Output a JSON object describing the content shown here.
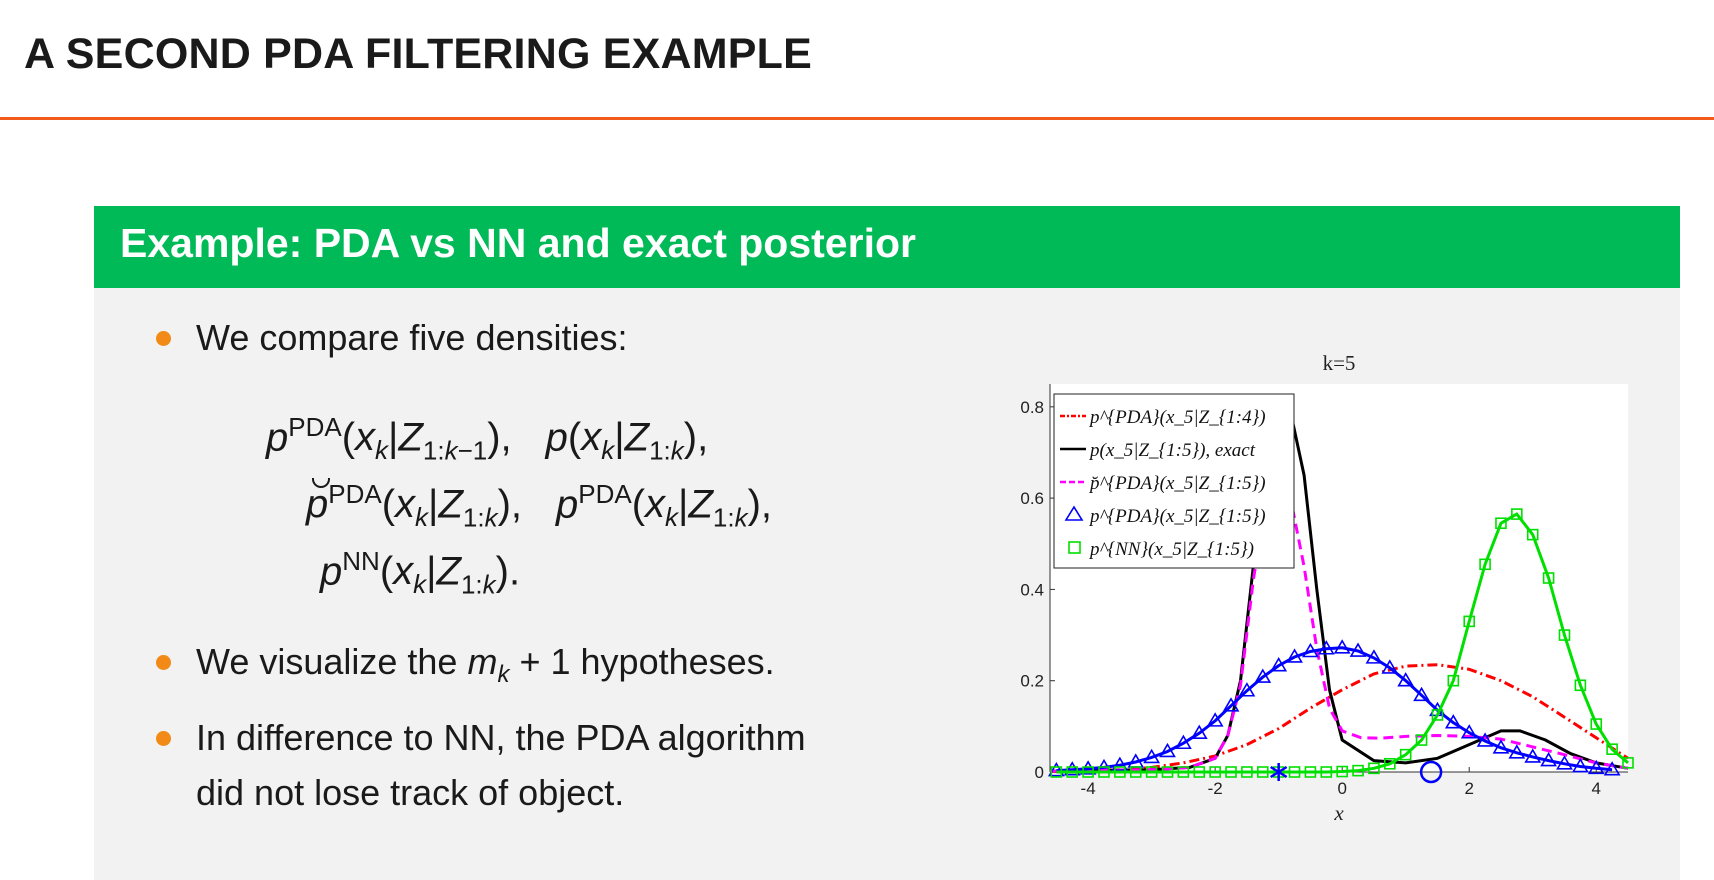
{
  "slide": {
    "title": "A SECOND PDA FILTERING EXAMPLE",
    "block_title": "Example: PDA vs NN and exact posterior"
  },
  "bullets": [
    "We compare five densities:",
    "We visualize the m_k + 1 hypotheses.",
    "In difference to NN, the PDA algorithm",
    "did not lose track of object."
  ],
  "colors": {
    "title_rule": "#f25a1c",
    "block_header": "#00ba57",
    "block_body": "#f2f2f2",
    "bullet": "#f28a18"
  },
  "chart_data": {
    "type": "line",
    "title": "k=5",
    "xlabel": "x",
    "ylabel": "",
    "xlim": [
      -4.6,
      4.5
    ],
    "ylim": [
      0,
      0.85
    ],
    "xticks": [
      -4,
      -2,
      0,
      2,
      4
    ],
    "yticks": [
      0,
      0.2,
      0.4,
      0.6,
      0.8
    ],
    "ytick_labels": [
      "0",
      "0.2",
      "0.4",
      "0.6",
      "0.8"
    ],
    "legend_position": "top-left",
    "grid": false,
    "series": [
      {
        "name": "p^{PDA}(x_5|Z_{1:4})",
        "color": "#ff0000",
        "style": "dash-dot",
        "marker": "none",
        "x": [
          -4.6,
          -4,
          -3.5,
          -3,
          -2.5,
          -2,
          -1.5,
          -1,
          -0.5,
          0,
          0.5,
          1,
          1.5,
          2,
          2.5,
          3,
          3.5,
          4,
          4.5
        ],
        "y": [
          0.001,
          0.002,
          0.005,
          0.01,
          0.02,
          0.035,
          0.06,
          0.095,
          0.14,
          0.18,
          0.215,
          0.232,
          0.235,
          0.225,
          0.2,
          0.165,
          0.12,
          0.075,
          0.03
        ]
      },
      {
        "name": "p(x_5|Z_{1:5}), exact",
        "color": "#000000",
        "style": "solid",
        "marker": "none",
        "x": [
          -4.6,
          -3,
          -2.4,
          -2,
          -1.8,
          -1.6,
          -1.4,
          -1.2,
          -1.0,
          -0.8,
          -0.6,
          -0.4,
          -0.2,
          0,
          0.5,
          1,
          1.5,
          2,
          2.5,
          2.8,
          3.2,
          3.6,
          4,
          4.5
        ],
        "y": [
          0.002,
          0.005,
          0.01,
          0.03,
          0.08,
          0.2,
          0.45,
          0.7,
          0.79,
          0.78,
          0.65,
          0.4,
          0.18,
          0.07,
          0.025,
          0.02,
          0.03,
          0.06,
          0.09,
          0.09,
          0.07,
          0.04,
          0.02,
          0.008
        ]
      },
      {
        "name": "p̆^{PDA}(x_5|Z_{1:5})",
        "color": "#ff00ff",
        "style": "dashed",
        "marker": "none",
        "x": [
          -4.6,
          -3,
          -2.4,
          -2,
          -1.8,
          -1.6,
          -1.4,
          -1.2,
          -1.0,
          -0.8,
          -0.6,
          -0.4,
          -0.2,
          0,
          0.3,
          0.6,
          1,
          1.5,
          2,
          2.5,
          3,
          3.5,
          4,
          4.5
        ],
        "y": [
          0.002,
          0.005,
          0.01,
          0.03,
          0.08,
          0.19,
          0.42,
          0.6,
          0.63,
          0.59,
          0.45,
          0.27,
          0.14,
          0.09,
          0.075,
          0.074,
          0.078,
          0.08,
          0.078,
          0.072,
          0.055,
          0.038,
          0.02,
          0.008
        ]
      },
      {
        "name": "p^{PDA}(x_5|Z_{1:5})",
        "color": "#0000ff",
        "style": "solid",
        "marker": "triangle",
        "x": [
          -4.5,
          -4.25,
          -4,
          -3.75,
          -3.5,
          -3.25,
          -3,
          -2.75,
          -2.5,
          -2.25,
          -2,
          -1.75,
          -1.5,
          -1.25,
          -1,
          -0.75,
          -0.5,
          -0.25,
          0,
          0.25,
          0.5,
          0.75,
          1,
          1.25,
          1.5,
          1.75,
          2,
          2.25,
          2.5,
          2.75,
          3,
          3.25,
          3.5,
          3.75,
          4,
          4.25
        ],
        "y": [
          0.003,
          0.005,
          0.007,
          0.01,
          0.015,
          0.022,
          0.032,
          0.045,
          0.063,
          0.085,
          0.112,
          0.145,
          0.178,
          0.208,
          0.233,
          0.252,
          0.264,
          0.27,
          0.272,
          0.265,
          0.25,
          0.228,
          0.2,
          0.168,
          0.135,
          0.108,
          0.086,
          0.068,
          0.053,
          0.042,
          0.033,
          0.025,
          0.018,
          0.012,
          0.008,
          0.005
        ]
      },
      {
        "name": "p^{NN}(x_5|Z_{1:5})",
        "color": "#00e000",
        "style": "solid",
        "marker": "square",
        "x": [
          -4.5,
          -4.25,
          -4,
          -3.75,
          -3.5,
          -3.25,
          -3,
          -2.75,
          -2.5,
          -2.25,
          -2,
          -1.75,
          -1.5,
          -1.25,
          -1,
          -0.75,
          -0.5,
          -0.25,
          0,
          0.25,
          0.5,
          0.75,
          1,
          1.25,
          1.5,
          1.75,
          2,
          2.25,
          2.5,
          2.75,
          3,
          3.25,
          3.5,
          3.75,
          4,
          4.25,
          4.5
        ],
        "y": [
          0,
          0,
          0,
          0,
          0,
          0,
          0,
          0,
          0,
          0,
          0,
          0,
          0,
          0,
          0,
          0,
          0,
          0,
          0.001,
          0.003,
          0.008,
          0.018,
          0.038,
          0.07,
          0.125,
          0.2,
          0.33,
          0.455,
          0.545,
          0.565,
          0.52,
          0.425,
          0.3,
          0.19,
          0.105,
          0.05,
          0.02
        ]
      }
    ],
    "markers": [
      {
        "type": "asterisk",
        "color": "#0000ff",
        "x": -1.0,
        "y": 0.0
      },
      {
        "type": "circle",
        "color": "#0000ff",
        "x": 1.4,
        "y": 0.0
      }
    ]
  }
}
